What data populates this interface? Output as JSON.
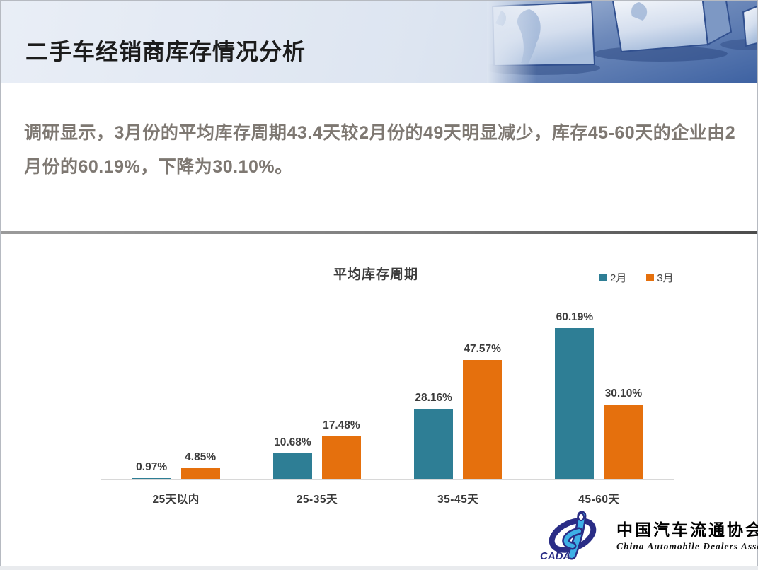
{
  "header": {
    "title": "二手车经销商库存情况分析"
  },
  "summary": {
    "text": "调研显示，3月份的平均库存周期43.4天较2月份的49天明显减少，库存45-60天的企业由2月份的60.19%，下降为30.10%。"
  },
  "chart_data": {
    "type": "bar",
    "title": "平均库存周期",
    "categories": [
      "25天以内",
      "25-35天",
      "35-45天",
      "45-60天"
    ],
    "series": [
      {
        "name": "2月",
        "color": "#2E7E95",
        "values": [
          0.97,
          10.68,
          28.16,
          60.19
        ]
      },
      {
        "name": "3月",
        "color": "#E5700D",
        "values": [
          4.85,
          17.48,
          47.57,
          30.1
        ]
      }
    ],
    "value_suffix": "%",
    "ylim": [
      0,
      65
    ],
    "grid": false,
    "legend_position": "top-right",
    "xlabel": "",
    "ylabel": ""
  },
  "logo": {
    "chinese": "中国汽车流通协会",
    "english": "China Automobile Dealers Association",
    "acronym": "CADA"
  },
  "colors": {
    "series_feb": "#2E7E95",
    "series_mar": "#E5700D",
    "summary_text": "#7e7872",
    "title_text": "#1c1c1c",
    "logo_navy": "#2a2d86",
    "logo_lightblue": "#3db0e6"
  }
}
